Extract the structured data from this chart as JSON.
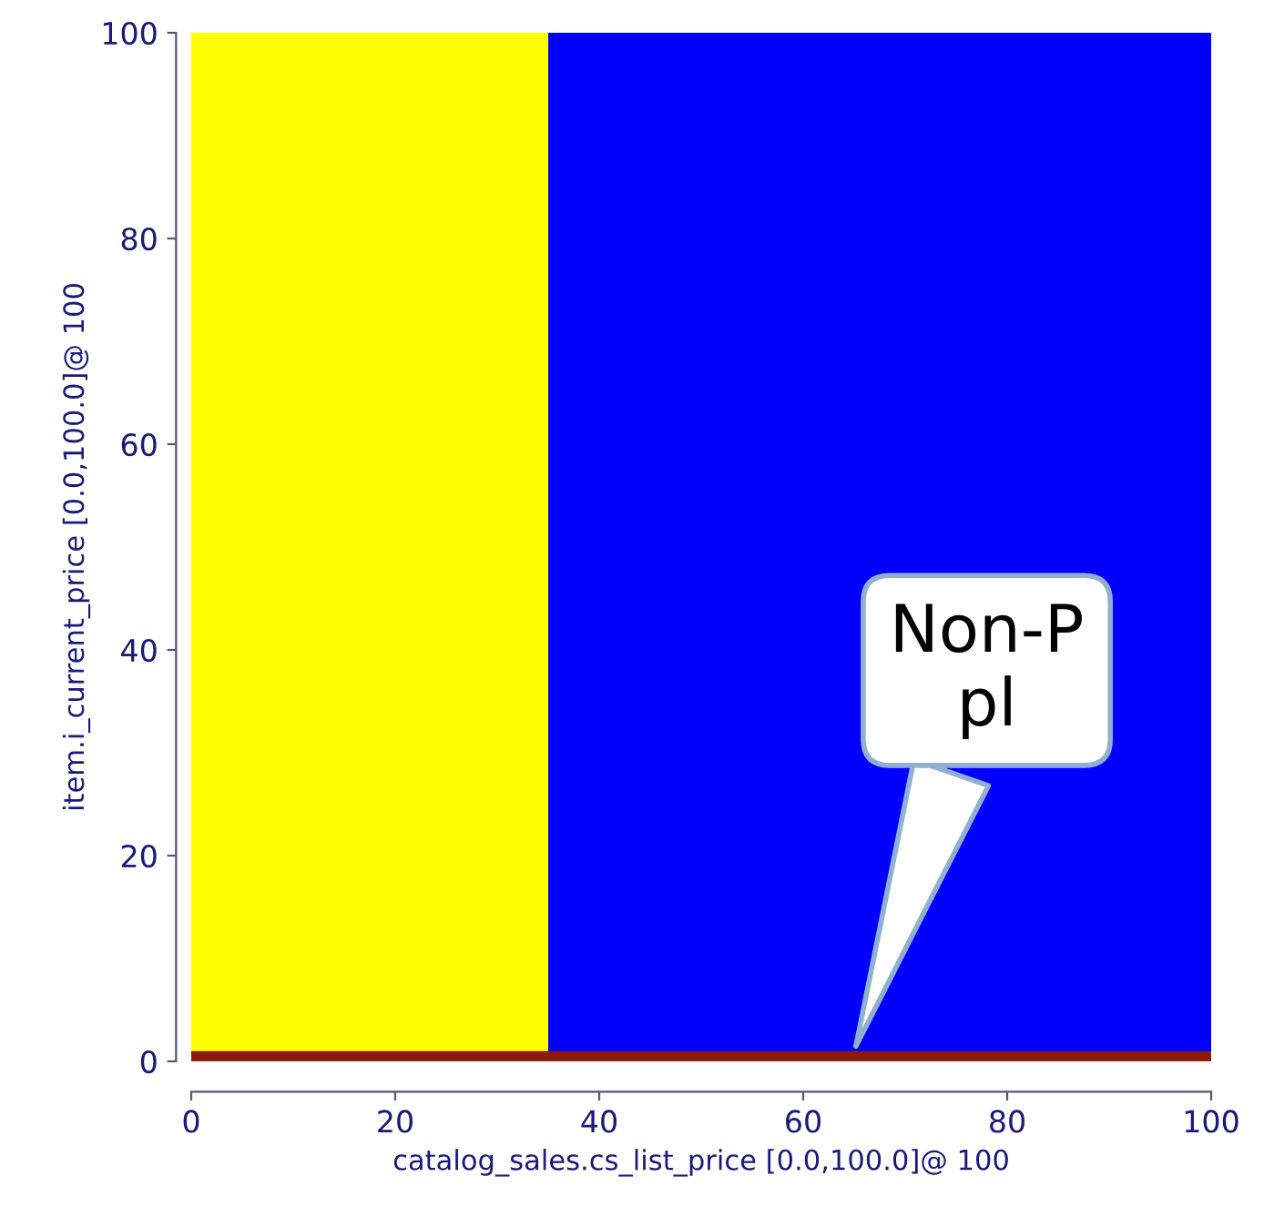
{
  "chart_data": {
    "type": "area",
    "xlabel": "catalog_sales.cs_list_price [0.0,100.0]@ 100",
    "ylabel": "item.i_current_price [0.0,100.0]@ 100",
    "series": [
      {
        "color": "#ffff00",
        "x": [
          0,
          35
        ],
        "values": [
          100,
          100
        ]
      },
      {
        "color": "#0000ff",
        "x": [
          35,
          100
        ],
        "values": [
          100,
          100
        ]
      },
      {
        "color": "#8b1a0a",
        "x": [
          0,
          100
        ],
        "values": [
          1,
          1
        ]
      }
    ],
    "xlim": [
      0,
      100
    ],
    "ylim": [
      0,
      100
    ],
    "xticks": [
      0,
      20,
      40,
      60,
      80,
      100
    ],
    "yticks": [
      0,
      20,
      40,
      60,
      80,
      100
    ],
    "grid": false,
    "legend": false,
    "annotations": [
      {
        "text": "Non-P\npl",
        "x": 65,
        "y": 1
      }
    ]
  }
}
